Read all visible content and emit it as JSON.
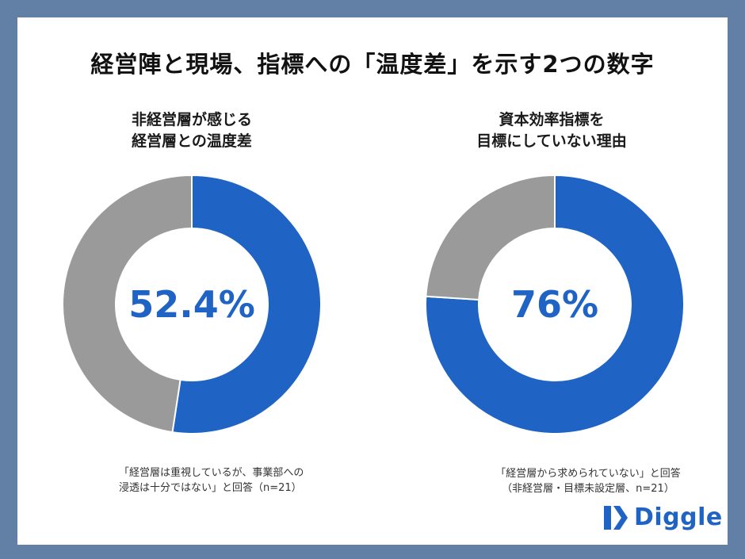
{
  "title": "経営陣と現場、指標への「温度差」を示す2つの数字",
  "colors": {
    "primary": "#1f63c4",
    "secondary": "#9a9a9a",
    "background": "#627fa5"
  },
  "chart_data": [
    {
      "type": "pie",
      "title_lines": [
        "非経営層が感じる",
        "経営層との温度差"
      ],
      "slices": [
        {
          "value": 52.4,
          "color": "#1f63c4"
        },
        {
          "value": 47.6,
          "color": "#9a9a9a"
        }
      ],
      "center_label": "52.4%",
      "note_lines": [
        "「経営層は重視しているが、事業部への",
        "浸透は十分ではない」と回答（n=21）"
      ]
    },
    {
      "type": "pie",
      "title_lines": [
        "資本効率指標を",
        "目標にしていない理由"
      ],
      "slices": [
        {
          "value": 76,
          "color": "#1f63c4"
        },
        {
          "value": 24,
          "color": "#9a9a9a"
        }
      ],
      "center_label": "76%",
      "note_lines": [
        "「経営層から求められていない」と回答",
        "（非経営層・目標未設定層、n=21）"
      ]
    }
  ],
  "brand": {
    "logo_text": "Diggle",
    "icon": "diggle-logo-icon"
  }
}
